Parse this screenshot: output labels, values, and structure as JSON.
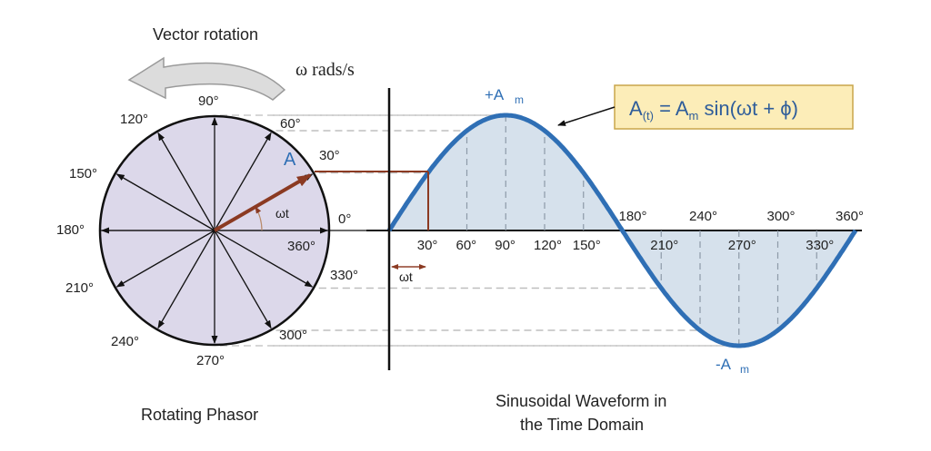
{
  "left": {
    "rotation_label": "Vector rotation",
    "omega_label": "ω rads/s",
    "phasor_letter": "A",
    "wt_label": "ωt",
    "caption": "Rotating Phasor",
    "angle_labels": [
      "0°",
      "30°",
      "60°",
      "90°",
      "120°",
      "150°",
      "180°",
      "210°",
      "240°",
      "270°",
      "300°",
      "330°",
      "360°"
    ]
  },
  "right": {
    "peak_pos": "+A",
    "peak_neg": "-A",
    "peak_sub": "m",
    "wt_marker": "ωt",
    "axis_labels": [
      "30°",
      "60°",
      "90°",
      "120°",
      "150°",
      "180°",
      "210°",
      "240°",
      "270°",
      "300°",
      "330°",
      "360°"
    ],
    "caption_line1": "Sinusoidal Waveform in",
    "caption_line2": "the Time Domain"
  },
  "formula": {
    "text_a": "A",
    "text_sub_t": "(t)",
    "text_eq": " = A",
    "text_sub_m": "m",
    "text_rest": " sin(ωt + ϕ)"
  },
  "colors": {
    "wave": "#2f6fb5",
    "phasor": "#8b3a22",
    "disc_fill": "#dcd8ea",
    "wave_fill": "#d6e1ec",
    "formula_box": "#fcedb8",
    "formula_border": "#c9a54a",
    "label_blue": "#2f6fb5"
  }
}
